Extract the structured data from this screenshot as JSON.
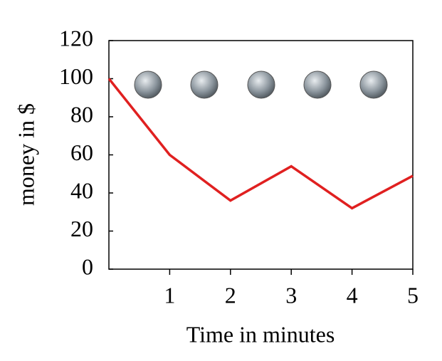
{
  "chart_data": {
    "type": "line",
    "x_label": "Time in minutes",
    "y_label": "money in $",
    "x": [
      0,
      1,
      2,
      3,
      4,
      5
    ],
    "series": [
      {
        "name": "money",
        "color": "#e02020",
        "values": [
          100,
          60,
          36,
          54,
          32,
          49
        ]
      }
    ],
    "xlim": [
      0,
      5
    ],
    "xticks": [
      1,
      2,
      3,
      4,
      5
    ],
    "ylim": [
      0,
      120
    ],
    "yticks": [
      0,
      20,
      40,
      60,
      80,
      100,
      120
    ]
  }
}
